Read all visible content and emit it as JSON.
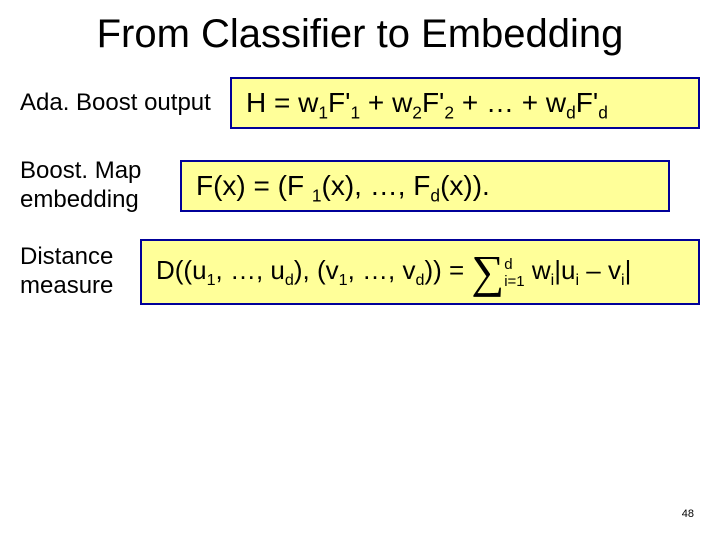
{
  "title": "From Classifier to Embedding",
  "rows": [
    {
      "label": "Ada. Boost output"
    },
    {
      "label": "Boost. Map embedding"
    },
    {
      "label": "Distance measure"
    }
  ],
  "formulas": {
    "adaboost": {
      "H": "H = ",
      "w1": "w",
      "s1": "1",
      "F1": "F'",
      "fs1": "1",
      "plus1": " + ",
      "w2": "w",
      "s2": "2",
      "F2": "F'",
      "fs2": "2",
      "plus2": " + … + ",
      "wd": "w",
      "sd": "d",
      "Fd": "F'",
      "fsd": "d"
    },
    "boostmap": {
      "Fx": "F(x) = (F ",
      "i1": "1",
      "mid": "(x), …, F",
      "id": "d",
      "end": "(x))."
    },
    "distance": {
      "D": "D((u",
      "u1": "1",
      "c1": ", …, u",
      "ud": "d",
      "c2": "), (v",
      "v1": "1",
      "c3": ", …, v",
      "vd": "d",
      "c4": ")) = ",
      "upper": "d",
      "lower": "i=1",
      "term_w": " w",
      "wi": "i",
      "term_u": "|u",
      "ui": "i",
      "minus": " – v",
      "vi": "i",
      "bar": "|"
    }
  },
  "pageNumber": "48",
  "colors": {
    "box_bg": "#ffff99",
    "box_border": "#000099",
    "text": "#000000",
    "bg": "#ffffff"
  }
}
